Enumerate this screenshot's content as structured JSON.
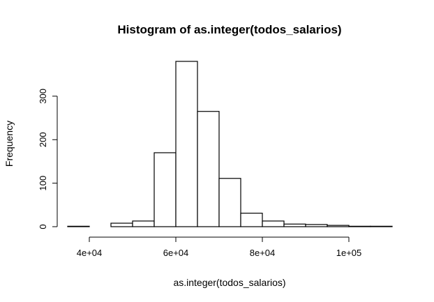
{
  "chart_data": {
    "type": "bar",
    "title": "Histogram of as.integer(todos_salarios)",
    "xlabel": "as.integer(todos_salarios)",
    "ylabel": "Frequency",
    "bin_edges": [
      35000,
      40000,
      45000,
      50000,
      55000,
      60000,
      65000,
      70000,
      75000,
      80000,
      85000,
      90000,
      95000,
      100000,
      105000,
      110000
    ],
    "values": [
      1,
      0,
      8,
      13,
      170,
      380,
      265,
      111,
      31,
      13,
      6,
      5,
      3,
      1,
      1
    ],
    "xlim": [
      35000,
      110000
    ],
    "ylim": [
      0,
      380
    ],
    "x_ticks": [
      {
        "value": 40000,
        "label": "4e+04"
      },
      {
        "value": 60000,
        "label": "6e+04"
      },
      {
        "value": 80000,
        "label": "8e+04"
      },
      {
        "value": 100000,
        "label": "1e+05"
      }
    ],
    "y_ticks": [
      {
        "value": 0,
        "label": "0"
      },
      {
        "value": 100,
        "label": "100"
      },
      {
        "value": 200,
        "label": "200"
      },
      {
        "value": 300,
        "label": "300"
      }
    ],
    "grid": false,
    "legend": "none",
    "colors": {
      "bar_fill": "#ffffff",
      "bar_stroke": "#000000",
      "background": "#ffffff"
    }
  }
}
